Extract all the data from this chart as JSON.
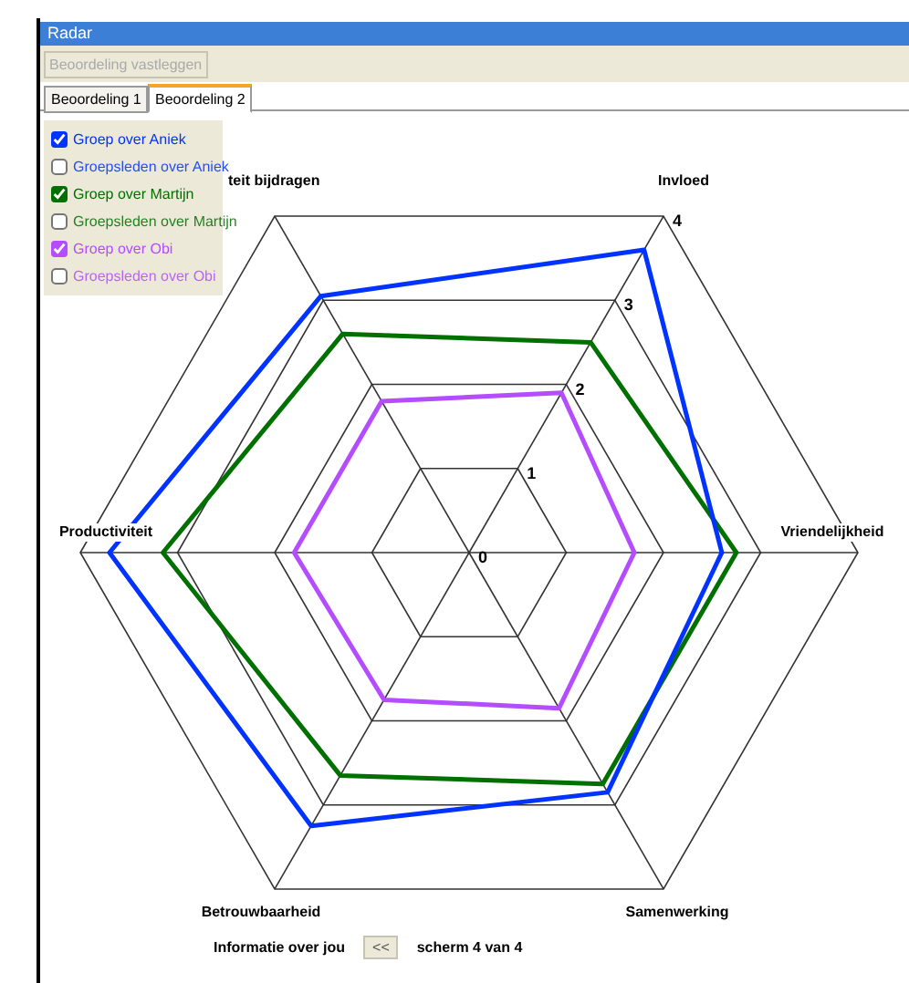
{
  "chart_data": {
    "type": "radar",
    "title": "Radar",
    "categories": [
      "Invloed",
      "Vriendelijkheid",
      "Samenwerking",
      "Betrouwbaarheid",
      "Productiviteit",
      "teit bijdragen"
    ],
    "series": [
      {
        "name": "Groep over Aniek",
        "color": "#0033ff",
        "values": [
          3.6,
          2.6,
          2.85,
          3.25,
          3.7,
          3.05
        ]
      },
      {
        "name": "Groep over Martijn",
        "color": "#007000",
        "values": [
          2.5,
          2.75,
          2.75,
          2.65,
          3.15,
          2.6
        ]
      },
      {
        "name": "Groep over Obi",
        "color": "#b44cff",
        "values": [
          1.9,
          1.7,
          1.85,
          1.75,
          1.8,
          1.8
        ]
      }
    ],
    "ylim": [
      0,
      4
    ],
    "yticks": [
      0,
      1,
      2,
      3,
      4
    ],
    "grid": true,
    "legend": "top left",
    "marker": "none",
    "annotations": [
      "Beoordeling vastleggen",
      "Beoordeling 1",
      "Beoordeling 2",
      "Informatie over jou",
      "<<",
      "scherm 4 van 4",
      "Groepsleden over Aniek",
      "Groepsleden over Martijn",
      "Groepsleden over Obi"
    ]
  }
}
